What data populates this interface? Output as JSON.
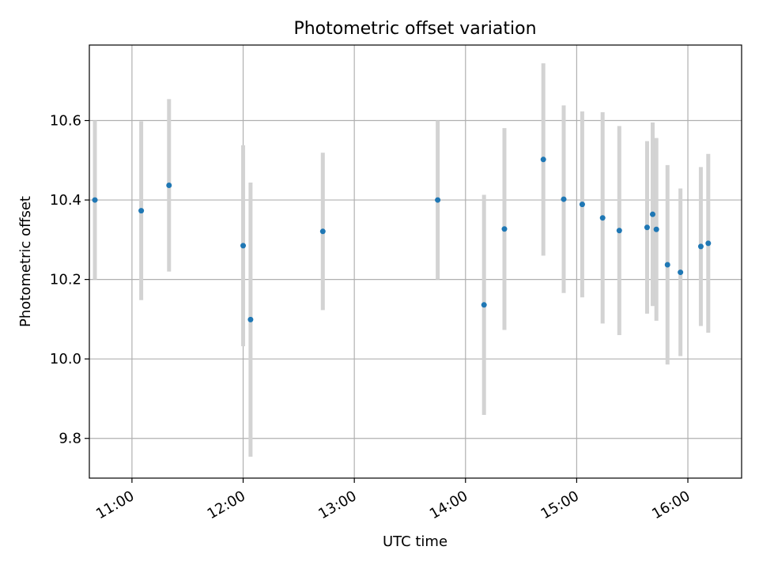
{
  "chart_data": {
    "type": "scatter",
    "title": "Photometric offset variation",
    "xlabel": "UTC time",
    "ylabel": "Photometric offset",
    "x_ticks": [
      "11:00",
      "12:00",
      "13:00",
      "14:00",
      "15:00",
      "16:00"
    ],
    "y_ticks": [
      "9.8",
      "10.0",
      "10.2",
      "10.4",
      "10.6"
    ],
    "xlim": [
      "10:37",
      "16:29"
    ],
    "ylim": [
      9.7,
      10.79
    ],
    "grid": true,
    "marker_color": "#1f77b4",
    "errorbar_color": "#d3d3d3",
    "points": [
      {
        "t": "10:40",
        "y": 10.4,
        "err": 0.2
      },
      {
        "t": "11:05",
        "y": 10.373,
        "err": 0.225
      },
      {
        "t": "11:20",
        "y": 10.437,
        "err": 0.217
      },
      {
        "t": "12:00",
        "y": 10.285,
        "err": 0.253
      },
      {
        "t": "12:04",
        "y": 10.099,
        "err": 0.345
      },
      {
        "t": "12:43",
        "y": 10.321,
        "err": 0.198
      },
      {
        "t": "13:45",
        "y": 10.4,
        "err": 0.2
      },
      {
        "t": "14:10",
        "y": 10.136,
        "err": 0.277
      },
      {
        "t": "14:21",
        "y": 10.327,
        "err": 0.254
      },
      {
        "t": "14:42",
        "y": 10.502,
        "err": 0.242
      },
      {
        "t": "14:53",
        "y": 10.402,
        "err": 0.236
      },
      {
        "t": "15:03",
        "y": 10.389,
        "err": 0.234
      },
      {
        "t": "15:14",
        "y": 10.355,
        "err": 0.266
      },
      {
        "t": "15:23",
        "y": 10.323,
        "err": 0.263
      },
      {
        "t": "15:38",
        "y": 10.331,
        "err": 0.217
      },
      {
        "t": "15:41",
        "y": 10.364,
        "err": 0.231
      },
      {
        "t": "15:43",
        "y": 10.326,
        "err": 0.23
      },
      {
        "t": "15:49",
        "y": 10.237,
        "err": 0.251
      },
      {
        "t": "15:56",
        "y": 10.218,
        "err": 0.211
      },
      {
        "t": "16:07",
        "y": 10.283,
        "err": 0.2
      },
      {
        "t": "16:11",
        "y": 10.291,
        "err": 0.225
      }
    ]
  }
}
